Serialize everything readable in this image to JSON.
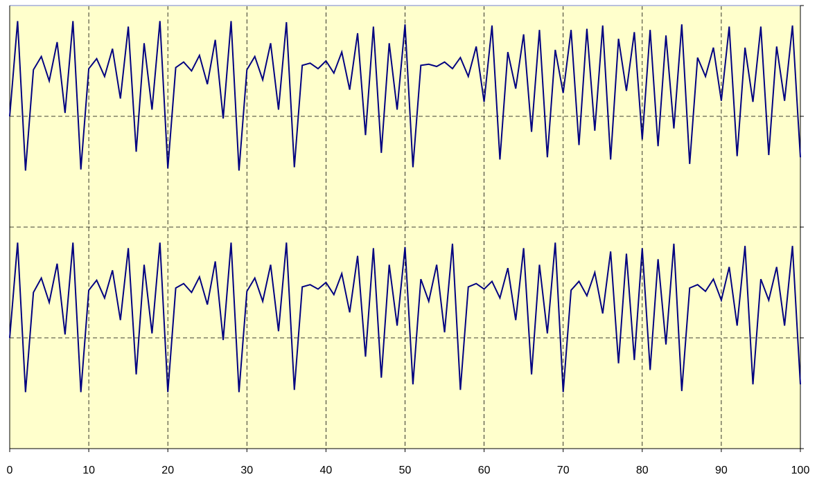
{
  "chart_data": {
    "type": "line",
    "x": [
      0,
      1,
      2,
      3,
      4,
      5,
      6,
      7,
      8,
      9,
      10,
      11,
      12,
      13,
      14,
      15,
      16,
      17,
      18,
      19,
      20,
      21,
      22,
      23,
      24,
      25,
      26,
      27,
      28,
      29,
      30,
      31,
      32,
      33,
      34,
      35,
      36,
      37,
      38,
      39,
      40,
      41,
      42,
      43,
      44,
      45,
      46,
      47,
      48,
      49,
      50,
      51,
      52,
      53,
      54,
      55,
      56,
      57,
      58,
      59,
      60,
      61,
      62,
      63,
      64,
      65,
      66,
      67,
      68,
      69,
      70,
      71,
      72,
      73,
      74,
      75,
      76,
      77,
      78,
      79,
      80,
      81,
      82,
      83,
      84,
      85,
      86,
      87,
      88,
      89,
      90,
      91,
      92,
      93,
      94,
      95,
      96,
      97,
      98,
      99,
      100
    ],
    "series": [
      {
        "color": "#000080",
        "values": [
          3.0,
          3.86,
          2.51,
          3.42,
          3.54,
          3.32,
          3.67,
          3.03,
          3.86,
          2.52,
          3.43,
          3.52,
          3.36,
          3.61,
          3.16,
          3.81,
          2.68,
          3.66,
          3.06,
          3.86,
          2.53,
          3.44,
          3.49,
          3.41,
          3.55,
          3.29,
          3.69,
          2.98,
          3.86,
          2.51,
          3.42,
          3.54,
          3.33,
          3.66,
          3.06,
          3.85,
          2.54,
          3.46,
          3.48,
          3.43,
          3.5,
          3.39,
          3.58,
          3.24,
          3.75,
          2.83,
          3.81,
          2.67,
          3.66,
          3.06,
          3.83,
          2.54,
          3.46,
          3.47,
          3.45,
          3.49,
          3.43,
          3.53,
          3.36,
          3.63,
          3.13,
          3.82,
          2.61,
          3.58,
          3.25,
          3.74,
          2.86,
          3.78,
          2.63,
          3.6,
          3.21,
          3.78,
          2.74,
          3.79,
          2.87,
          3.82,
          2.61,
          3.7,
          3.23,
          3.76,
          2.79,
          3.78,
          2.73,
          3.73,
          2.89,
          3.83,
          2.57,
          3.53,
          3.36,
          3.62,
          3.14,
          3.81,
          2.64,
          3.62,
          3.13,
          3.81,
          2.65,
          3.63,
          3.14,
          3.82,
          2.63
        ]
      },
      {
        "color": "#000080",
        "values": [
          1.0,
          1.86,
          0.51,
          1.41,
          1.54,
          1.32,
          1.67,
          1.03,
          1.86,
          0.51,
          1.43,
          1.52,
          1.36,
          1.61,
          1.16,
          1.81,
          0.67,
          1.66,
          1.04,
          1.86,
          0.51,
          1.45,
          1.49,
          1.41,
          1.55,
          1.3,
          1.69,
          0.98,
          1.86,
          0.51,
          1.42,
          1.54,
          1.33,
          1.66,
          1.06,
          1.86,
          0.53,
          1.46,
          1.48,
          1.44,
          1.5,
          1.39,
          1.58,
          1.23,
          1.74,
          0.83,
          1.81,
          0.64,
          1.66,
          1.11,
          1.82,
          0.58,
          1.53,
          1.33,
          1.66,
          1.05,
          1.85,
          0.53,
          1.46,
          1.49,
          1.44,
          1.51,
          1.36,
          1.63,
          1.16,
          1.81,
          0.67,
          1.66,
          1.04,
          1.86,
          0.51,
          1.43,
          1.51,
          1.38,
          1.59,
          1.22,
          1.78,
          0.77,
          1.76,
          0.8,
          1.81,
          0.71,
          1.71,
          0.94,
          1.85,
          0.52,
          1.45,
          1.48,
          1.42,
          1.53,
          1.34,
          1.64,
          1.11,
          1.83,
          0.58,
          1.53,
          1.34,
          1.64,
          1.11,
          1.83,
          0.58
        ]
      }
    ],
    "xlim": [
      0,
      100
    ],
    "xticks": [
      0,
      10,
      20,
      30,
      40,
      50,
      60,
      70,
      80,
      90,
      100
    ],
    "ylim": [
      0,
      4
    ],
    "yticks": [
      0,
      1,
      2,
      3,
      4
    ],
    "ytick_labels": false,
    "grid": true,
    "background": "#ffffcc"
  }
}
